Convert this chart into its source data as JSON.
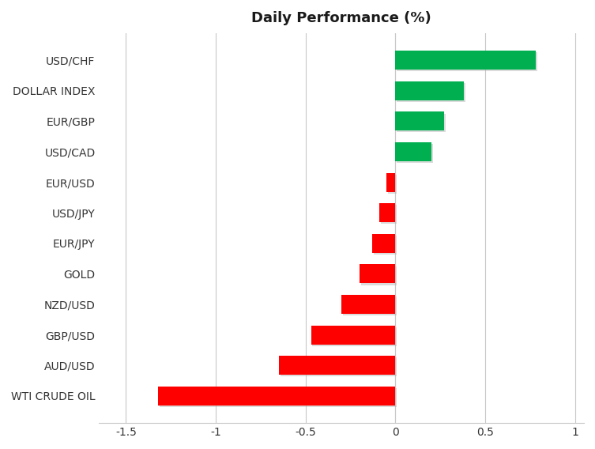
{
  "title": "Daily Performance (%)",
  "categories": [
    "WTI CRUDE OIL",
    "AUD/USD",
    "GBP/USD",
    "NZD/USD",
    "GOLD",
    "EUR/JPY",
    "USD/JPY",
    "EUR/USD",
    "USD/CAD",
    "EUR/GBP",
    "DOLLAR INDEX",
    "USD/CHF"
  ],
  "values": [
    -1.32,
    -0.65,
    -0.47,
    -0.3,
    -0.2,
    -0.13,
    -0.09,
    -0.05,
    0.2,
    0.27,
    0.38,
    0.78
  ],
  "positive_color": "#00b050",
  "negative_color": "#ff0000",
  "background_color": "#ffffff",
  "title_fontsize": 13,
  "tick_fontsize": 10,
  "label_fontsize": 10,
  "xlim": [
    -1.65,
    1.05
  ],
  "xticks": [
    -1.5,
    -1.0,
    -0.5,
    0.0,
    0.5,
    1.0
  ],
  "grid_color": "#c8c8c8"
}
